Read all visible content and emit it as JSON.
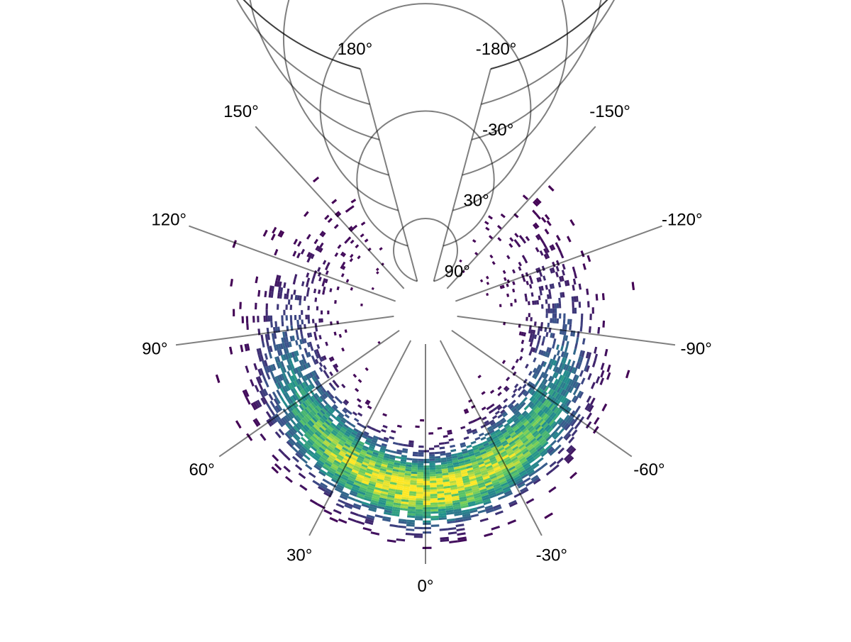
{
  "chart_data": {
    "type": "heatmap",
    "projection": "polar",
    "theta_axis": {
      "range_deg": [
        -180,
        180
      ],
      "ticks": [
        -180,
        -150,
        -120,
        -90,
        -60,
        -30,
        0,
        30,
        60,
        90,
        120,
        150,
        180
      ],
      "tick_labels": [
        "-180°",
        "-150°",
        "-120°",
        "-90°",
        "-60°",
        "-30°",
        "0°",
        "30°",
        "60°",
        "90°",
        "120°",
        "150°",
        "180°"
      ],
      "zero_direction": "bottom",
      "gap": "top wedge between -180° and 180° is left open"
    },
    "radial_axis": {
      "range_deg": [
        90,
        -90
      ],
      "ticks": [
        90,
        60,
        30,
        0,
        -30,
        -60,
        -90
      ],
      "tick_labels": [
        "90°",
        "30°",
        "-30°"
      ],
      "inner_hole": true
    },
    "grid": true,
    "colormap": "viridis",
    "colormap_stops": [
      "#440154",
      "#3b528b",
      "#21918c",
      "#5ec962",
      "#fde725"
    ],
    "density": {
      "description": "Counts per bin; densest near theta 0° and radial ~-30°, falling off toward theta ±150° and radial 60°/-75°",
      "peak": {
        "theta_deg": 0,
        "radial_deg": -32
      },
      "theta_spread_deg": 55,
      "radial_spread_deg": 18,
      "support": {
        "theta_deg": [
          -160,
          160
        ],
        "radial_deg": [
          -85,
          75
        ]
      }
    },
    "title": "",
    "xlabel": "",
    "ylabel": ""
  }
}
